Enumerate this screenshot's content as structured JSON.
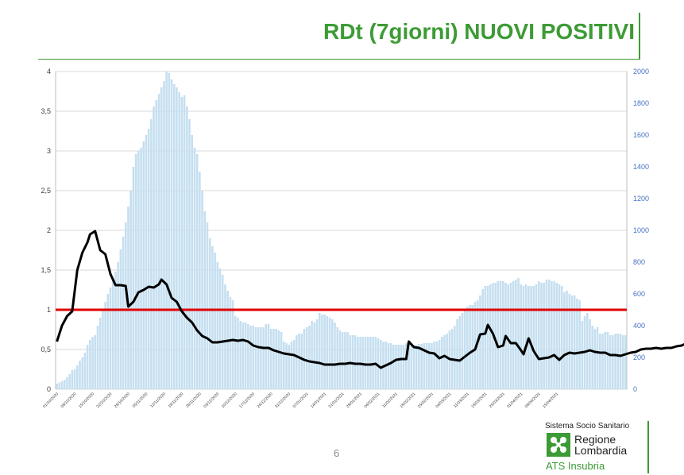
{
  "title": "RDt (7giorni) NUOVI POSITIVI",
  "page_number": "6",
  "logo": {
    "top_text": "Sistema Socio Sanitario",
    "region_line1": "Regione",
    "region_line2": "Lombardia",
    "bottom_text": "ATS Insubria"
  },
  "colors": {
    "title": "#3d9b35",
    "bars": "#c5dff0",
    "rdt_line": "#000000",
    "threshold_line": "#e00000",
    "right_axis_labels": "#4472c4",
    "logo_green": "#3d9b35"
  },
  "chart_data": {
    "type": "bar+line",
    "title": "RDt (7giorni) NUOVI POSITIVI",
    "y_left": {
      "range": [
        0,
        4
      ],
      "ticks": [
        "0",
        "0,5",
        "1",
        "1,5",
        "2",
        "2,5",
        "3",
        "3,5",
        "4"
      ]
    },
    "y_right": {
      "range": [
        0,
        2000
      ],
      "ticks": [
        "0",
        "200",
        "400",
        "600",
        "800",
        "1000",
        "1200",
        "1400",
        "1600",
        "1800",
        "2000"
      ]
    },
    "x_tick_labels": [
      "01/10/2020",
      "08/10/2020",
      "15/10/2020",
      "22/10/2020",
      "29/10/2020",
      "05/11/2020",
      "12/11/2020",
      "19/11/2020",
      "26/11/2020",
      "03/12/2020",
      "10/12/2020",
      "17/12/2020",
      "24/12/2020",
      "31/12/2020",
      "07/01/2021",
      "14/01/2021",
      "21/01/2021",
      "28/01/2021",
      "04/02/2021",
      "11/02/2021",
      "18/02/2021",
      "25/02/2021",
      "04/03/2021",
      "11/03/2021",
      "18/03/2021",
      "25/03/2021",
      "01/04/2021",
      "08/04/2021",
      "15/04/2021"
    ],
    "threshold": 1,
    "bars_new_positives_7day": [
      35,
      42,
      50,
      60,
      75,
      95,
      120,
      125,
      150,
      180,
      200,
      230,
      280,
      310,
      330,
      340,
      400,
      450,
      500,
      550,
      600,
      640,
      680,
      740,
      800,
      880,
      960,
      1050,
      1150,
      1250,
      1400,
      1480,
      1500,
      1520,
      1560,
      1600,
      1640,
      1700,
      1780,
      1820,
      1860,
      1900,
      1940,
      2000,
      1990,
      1950,
      1920,
      1900,
      1870,
      1840,
      1850,
      1780,
      1700,
      1600,
      1520,
      1480,
      1370,
      1250,
      1120,
      1050,
      950,
      900,
      860,
      800,
      760,
      720,
      660,
      620,
      580,
      560,
      460,
      450,
      430,
      420,
      420,
      410,
      400,
      400,
      390,
      390,
      390,
      390,
      410,
      410,
      380,
      380,
      380,
      370,
      360,
      300,
      290,
      280,
      300,
      310,
      340,
      350,
      350,
      380,
      390,
      400,
      430,
      420,
      440,
      480,
      470,
      470,
      460,
      450,
      440,
      420,
      390,
      370,
      360,
      360,
      360,
      340,
      340,
      340,
      330,
      330,
      330,
      330,
      330,
      330,
      330,
      330,
      320,
      310,
      300,
      300,
      290,
      290,
      280,
      280,
      280,
      280,
      280,
      290,
      290,
      280,
      280,
      280,
      285,
      285,
      290,
      290,
      290,
      290,
      300,
      300,
      310,
      330,
      340,
      350,
      370,
      380,
      400,
      440,
      460,
      480,
      500,
      520,
      530,
      530,
      550,
      560,
      590,
      630,
      650,
      650,
      660,
      670,
      670,
      680,
      680,
      680,
      670,
      660,
      670,
      680,
      690,
      700,
      660,
      650,
      660,
      650,
      650,
      650,
      660,
      680,
      670,
      670,
      690,
      690,
      680,
      680,
      670,
      660,
      650,
      610,
      620,
      600,
      590,
      590,
      570,
      560,
      430,
      460,
      480,
      440,
      400,
      380,
      390,
      350,
      350,
      360,
      360,
      340,
      340,
      350,
      350,
      350,
      340,
      340
    ],
    "line_rdt": [
      [
        0,
        0.6
      ],
      [
        2,
        0.8
      ],
      [
        4,
        0.92
      ],
      [
        6,
        0.98
      ],
      [
        8,
        1.5
      ],
      [
        10,
        1.72
      ],
      [
        12,
        1.85
      ],
      [
        13,
        1.95
      ],
      [
        14,
        1.97
      ],
      [
        15,
        1.99
      ],
      [
        17,
        1.75
      ],
      [
        19,
        1.7
      ],
      [
        21,
        1.45
      ],
      [
        23,
        1.31
      ],
      [
        25,
        1.31
      ],
      [
        27,
        1.3
      ],
      [
        28,
        1.04
      ],
      [
        30,
        1.1
      ],
      [
        32,
        1.22
      ],
      [
        34,
        1.25
      ],
      [
        36,
        1.29
      ],
      [
        38,
        1.28
      ],
      [
        40,
        1.32
      ],
      [
        41,
        1.38
      ],
      [
        43,
        1.32
      ],
      [
        45,
        1.15
      ],
      [
        47,
        1.1
      ],
      [
        49,
        0.98
      ],
      [
        51,
        0.9
      ],
      [
        53,
        0.84
      ],
      [
        55,
        0.74
      ],
      [
        57,
        0.67
      ],
      [
        59,
        0.64
      ],
      [
        61,
        0.59
      ],
      [
        63,
        0.59
      ],
      [
        65,
        0.6
      ],
      [
        67,
        0.61
      ],
      [
        69,
        0.62
      ],
      [
        71,
        0.61
      ],
      [
        73,
        0.62
      ],
      [
        75,
        0.6
      ],
      [
        77,
        0.55
      ],
      [
        79,
        0.53
      ],
      [
        81,
        0.52
      ],
      [
        83,
        0.52
      ],
      [
        85,
        0.49
      ],
      [
        87,
        0.47
      ],
      [
        89,
        0.45
      ],
      [
        91,
        0.44
      ],
      [
        93,
        0.43
      ],
      [
        95,
        0.4
      ],
      [
        97,
        0.37
      ],
      [
        99,
        0.35
      ],
      [
        101,
        0.34
      ],
      [
        103,
        0.33
      ],
      [
        105,
        0.31
      ],
      [
        107,
        0.31
      ],
      [
        109,
        0.31
      ],
      [
        111,
        0.32
      ],
      [
        113,
        0.32
      ],
      [
        115,
        0.33
      ],
      [
        117,
        0.32
      ],
      [
        119,
        0.32
      ],
      [
        121,
        0.31
      ],
      [
        123,
        0.31
      ],
      [
        125,
        0.32
      ],
      [
        127,
        0.27
      ],
      [
        129,
        0.3
      ],
      [
        131,
        0.33
      ],
      [
        133,
        0.37
      ],
      [
        135,
        0.38
      ],
      [
        137,
        0.38
      ],
      [
        138,
        0.6
      ],
      [
        140,
        0.53
      ],
      [
        142,
        0.52
      ],
      [
        144,
        0.49
      ],
      [
        146,
        0.46
      ],
      [
        148,
        0.45
      ],
      [
        150,
        0.39
      ],
      [
        152,
        0.42
      ],
      [
        154,
        0.38
      ],
      [
        156,
        0.37
      ],
      [
        158,
        0.36
      ],
      [
        160,
        0.41
      ],
      [
        162,
        0.46
      ],
      [
        164,
        0.5
      ],
      [
        166,
        0.69
      ],
      [
        168,
        0.7
      ],
      [
        169,
        0.81
      ],
      [
        171,
        0.7
      ],
      [
        173,
        0.53
      ],
      [
        175,
        0.55
      ],
      [
        176,
        0.67
      ],
      [
        178,
        0.58
      ],
      [
        180,
        0.58
      ],
      [
        182,
        0.49
      ],
      [
        183,
        0.44
      ],
      [
        185,
        0.64
      ],
      [
        187,
        0.48
      ],
      [
        189,
        0.38
      ],
      [
        191,
        0.39
      ],
      [
        193,
        0.4
      ],
      [
        195,
        0.43
      ],
      [
        197,
        0.37
      ],
      [
        199,
        0.43
      ],
      [
        201,
        0.46
      ],
      [
        203,
        0.45
      ],
      [
        205,
        0.46
      ],
      [
        207,
        0.47
      ],
      [
        209,
        0.49
      ],
      [
        211,
        0.47
      ],
      [
        213,
        0.46
      ],
      [
        215,
        0.46
      ],
      [
        217,
        0.43
      ],
      [
        219,
        0.43
      ],
      [
        221,
        0.42
      ],
      [
        223,
        0.44
      ],
      [
        225,
        0.46
      ],
      [
        227,
        0.47
      ],
      [
        229,
        0.5
      ],
      [
        231,
        0.51
      ],
      [
        233,
        0.51
      ],
      [
        235,
        0.52
      ],
      [
        237,
        0.51
      ],
      [
        239,
        0.52
      ],
      [
        241,
        0.52
      ],
      [
        243,
        0.54
      ],
      [
        245,
        0.55
      ],
      [
        247,
        0.58
      ],
      [
        249,
        0.61
      ],
      [
        251,
        0.63
      ],
      [
        253,
        0.65
      ],
      [
        255,
        0.72
      ],
      [
        257,
        0.73
      ],
      [
        259,
        0.71
      ],
      [
        261,
        0.71
      ],
      [
        263,
        0.7
      ],
      [
        265,
        0.67
      ],
      [
        267,
        0.61
      ],
      [
        269,
        0.6
      ],
      [
        271,
        0.57
      ],
      [
        273,
        0.58
      ],
      [
        275,
        0.57
      ],
      [
        277,
        0.56
      ],
      [
        279,
        0.6
      ],
      [
        281,
        0.6
      ],
      [
        283,
        0.59
      ],
      [
        285,
        0.56
      ],
      [
        287,
        0.55
      ],
      [
        289,
        0.56
      ],
      [
        291,
        0.52
      ],
      [
        293,
        0.49
      ],
      [
        295,
        0.48
      ],
      [
        297,
        0.49
      ],
      [
        299,
        0.48
      ],
      [
        301,
        0.47
      ],
      [
        303,
        0.5
      ],
      [
        305,
        0.53
      ],
      [
        307,
        0.53
      ],
      [
        309,
        0.52
      ],
      [
        311,
        0.5
      ],
      [
        313,
        0.49
      ],
      [
        315,
        0.44
      ],
      [
        317,
        0.44
      ],
      [
        319,
        0.45
      ],
      [
        321,
        0.44
      ],
      [
        323,
        0.4
      ],
      [
        325,
        0.38
      ],
      [
        327,
        0.42
      ],
      [
        329,
        0.35
      ],
      [
        331,
        0.32
      ],
      [
        333,
        0.32
      ],
      [
        335,
        0.33
      ],
      [
        337,
        0.41
      ],
      [
        339,
        0.44
      ],
      [
        341,
        0.41
      ],
      [
        343,
        0.45
      ],
      [
        345,
        0.49
      ],
      [
        347,
        0.46
      ],
      [
        349,
        0.44
      ],
      [
        351,
        0.42
      ],
      [
        353,
        0.42
      ],
      [
        355,
        0.45
      ],
      [
        357,
        0.46
      ],
      [
        359,
        0.46
      ]
    ]
  }
}
